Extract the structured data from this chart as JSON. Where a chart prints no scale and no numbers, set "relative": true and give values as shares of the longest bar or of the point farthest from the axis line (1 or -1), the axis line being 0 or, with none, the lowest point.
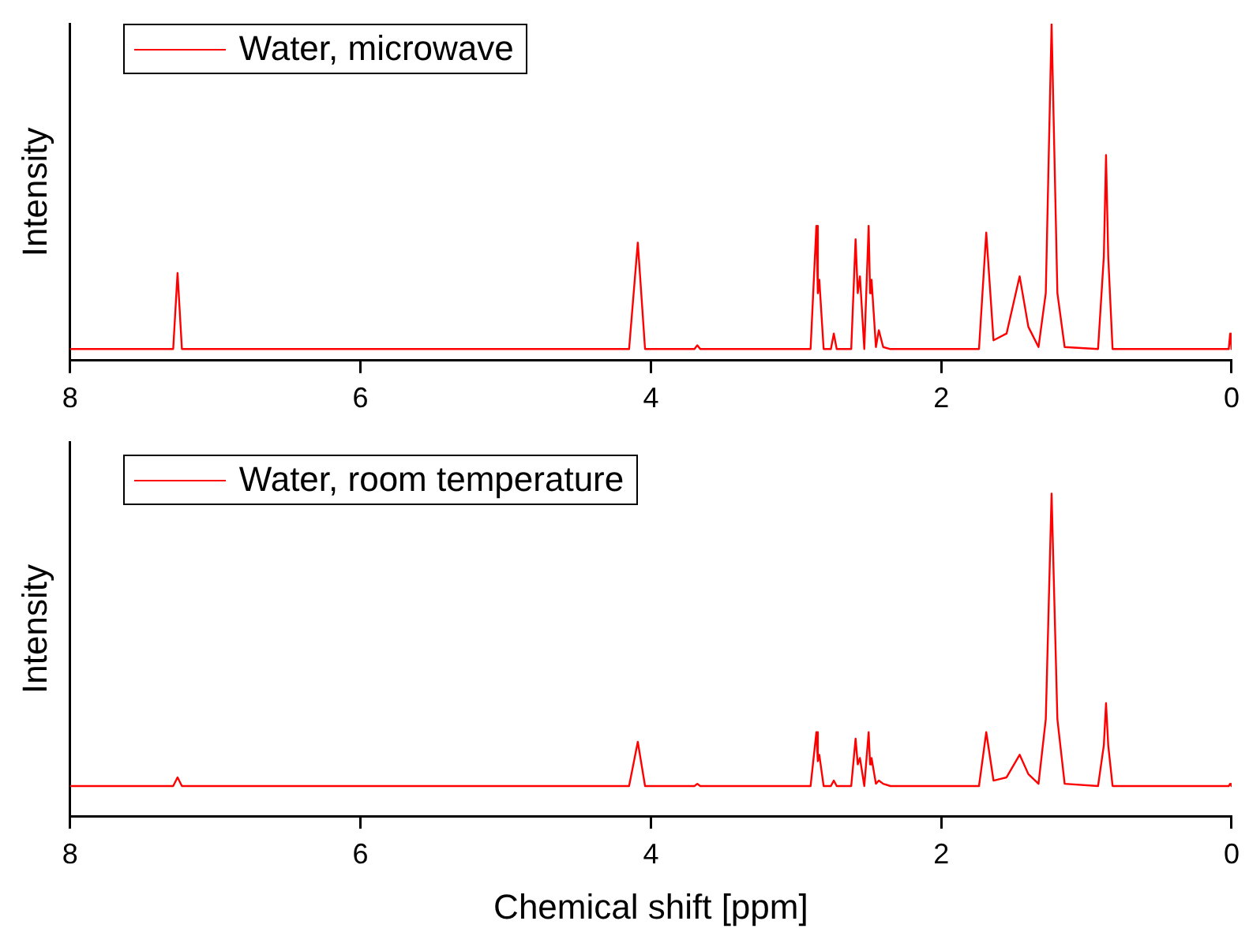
{
  "chart_data": [
    {
      "type": "line",
      "ylabel": "Intensity",
      "relative": true,
      "xlim": [
        8,
        0
      ],
      "xticks": [
        8,
        6,
        4,
        2,
        0
      ],
      "legend": "top left",
      "tick_labels": "x",
      "marker": "none",
      "line_style": "solid",
      "series": [
        {
          "name": "Water, microwave",
          "color": "#ff0000",
          "x": [
            8,
            7.29,
            7.26,
            7.23,
            4.15,
            4.09,
            4.04,
            3.7,
            3.68,
            3.66,
            2.9,
            2.86,
            2.85,
            2.84,
            2.81,
            2.76,
            2.74,
            2.72,
            2.62,
            2.59,
            2.575,
            2.56,
            2.53,
            2.5,
            2.49,
            2.48,
            2.45,
            2.43,
            2.4,
            2.35,
            1.74,
            1.69,
            1.64,
            1.55,
            1.46,
            1.4,
            1.33,
            1.28,
            1.24,
            1.2,
            1.15,
            0.92,
            0.88,
            0.865,
            0.85,
            0.82,
            0.02,
            0.01,
            0
          ],
          "values": [
            0.034,
            0.034,
            0.26,
            0.034,
            0.034,
            0.35,
            0.034,
            0.034,
            0.045,
            0.034,
            0.034,
            0.4,
            0.2,
            0.24,
            0.034,
            0.034,
            0.08,
            0.034,
            0.034,
            0.36,
            0.2,
            0.25,
            0.034,
            0.4,
            0.2,
            0.24,
            0.04,
            0.09,
            0.04,
            0.034,
            0.034,
            0.38,
            0.06,
            0.08,
            0.25,
            0.1,
            0.04,
            0.2,
            1,
            0.2,
            0.04,
            0.034,
            0.31,
            0.61,
            0.31,
            0.034,
            0.034,
            0.08,
            0.034
          ]
        }
      ]
    },
    {
      "type": "line",
      "ylabel": "Intensity",
      "xlabel": "Chemical shift [ppm]",
      "relative": true,
      "xlim": [
        8,
        0
      ],
      "xticks": [
        8,
        6,
        4,
        2,
        0
      ],
      "legend": "top left",
      "tick_labels": "x",
      "marker": "none",
      "line_style": "solid",
      "series": [
        {
          "name": "Water, room temperature",
          "color": "#ff0000",
          "x": [
            8,
            7.29,
            7.26,
            7.23,
            4.15,
            4.09,
            4.04,
            3.7,
            3.68,
            3.66,
            2.9,
            2.86,
            2.85,
            2.84,
            2.81,
            2.76,
            2.74,
            2.72,
            2.62,
            2.59,
            2.575,
            2.56,
            2.53,
            2.5,
            2.49,
            2.48,
            2.45,
            2.43,
            2.4,
            2.35,
            1.74,
            1.69,
            1.64,
            1.55,
            1.46,
            1.4,
            1.33,
            1.28,
            1.24,
            1.2,
            1.15,
            0.92,
            0.88,
            0.865,
            0.85,
            0.82,
            0.02,
            0.01,
            0
          ],
          "values": [
            0.093,
            0.093,
            0.12,
            0.093,
            0.093,
            0.23,
            0.093,
            0.093,
            0.1,
            0.093,
            0.093,
            0.26,
            0.17,
            0.19,
            0.093,
            0.093,
            0.11,
            0.093,
            0.093,
            0.24,
            0.16,
            0.18,
            0.093,
            0.26,
            0.16,
            0.18,
            0.1,
            0.11,
            0.1,
            0.093,
            0.093,
            0.26,
            0.11,
            0.12,
            0.19,
            0.13,
            0.1,
            0.3,
            1,
            0.3,
            0.1,
            0.093,
            0.22,
            0.35,
            0.22,
            0.093,
            0.093,
            0.1,
            0.093
          ]
        }
      ]
    }
  ]
}
